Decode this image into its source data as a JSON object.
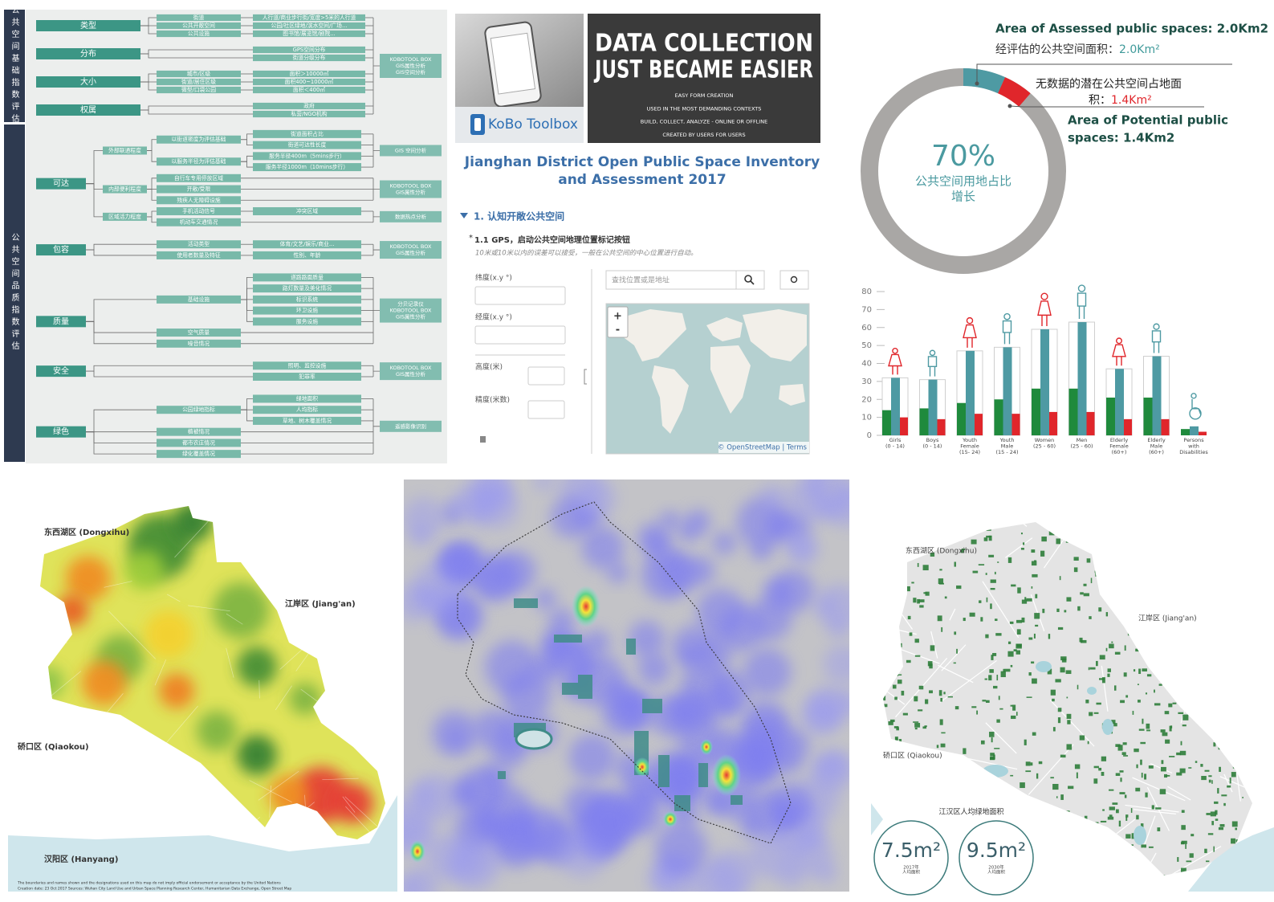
{
  "framework": {
    "sections": [
      {
        "title": "公共空间基础指数评估",
        "categories": [
          {
            "label": "类型",
            "children": [
              {
                "label": "街道",
                "children": [
                  {
                    "label": "人行道/商业步行街/宽度>5米的人行道"
                  }
                ]
              },
              {
                "label": "公共开敞空间",
                "children": [
                  {
                    "label": "公园/社区绿地/滨水空间/广场..."
                  }
                ]
              },
              {
                "label": "公共设施",
                "children": [
                  {
                    "label": "图书馆/展览馆/剧院..."
                  }
                ]
              }
            ]
          },
          {
            "label": "分布",
            "children": [
              {
                "label": "GPS空间分布"
              },
              {
                "label": "街道分级分布"
              }
            ]
          },
          {
            "label": "大小",
            "children": [
              {
                "label": "城市/区级",
                "children": [
                  {
                    "label": "面积＞10000㎡"
                  }
                ]
              },
              {
                "label": "街道/居住区级",
                "children": [
                  {
                    "label": "面积400~10000㎡"
                  }
                ]
              },
              {
                "label": "微型/口袋公园",
                "children": [
                  {
                    "label": "面积＜400㎡"
                  }
                ]
              }
            ]
          },
          {
            "label": "权属",
            "children": [
              {
                "label": "政府"
              },
              {
                "label": "私营/NGO机构"
              }
            ]
          }
        ],
        "outputs": [
          "KOBOTOOL BOX",
          "GIS属性分析",
          "GIS空间分析"
        ]
      },
      {
        "title": "公共空间品质指数评估",
        "categories": [
          {
            "label": "可达",
            "children": [
              {
                "label": "外部联通程度",
                "outputs": [
                  "GIS 空间分析"
                ],
                "children": [
                  {
                    "label": "以街道密度为评估基础",
                    "children": [
                      {
                        "label": "街道面积占比"
                      },
                      {
                        "label": "街道可达性长度"
                      }
                    ]
                  },
                  {
                    "label": "以服务半径为评估基础",
                    "children": [
                      {
                        "label": "服务半径400m（5mins步行）"
                      },
                      {
                        "label": "服务半径1000m（10mins步行）"
                      }
                    ]
                  }
                ]
              },
              {
                "label": "内部便利程度",
                "outputs": [
                  "KOBOTOOL BOX",
                  "GIS属性分析"
                ],
                "children": [
                  {
                    "label": "自行车专用停放区域"
                  },
                  {
                    "label": "开敞/受限"
                  },
                  {
                    "label": "残疾人无障碍设施"
                  }
                ]
              },
              {
                "label": "区域活力程度",
                "outputs": [
                  "数据热点分析"
                ],
                "children": [
                  {
                    "label": "手机活动信号",
                    "children": [
                      {
                        "label": "冲突区域"
                      }
                    ]
                  },
                  {
                    "label": "机动车交通情况"
                  }
                ]
              }
            ]
          },
          {
            "label": "包容",
            "outputs": [
              "KOBOTOOL BOX",
              "GIS属性分析"
            ],
            "children": [
              {
                "label": "活动类型",
                "children": [
                  {
                    "label": "体育/文艺/娱乐/商业..."
                  }
                ]
              },
              {
                "label": "使用者数量及特征",
                "children": [
                  {
                    "label": "性别、年龄"
                  }
                ]
              }
            ]
          },
          {
            "label": "质量",
            "outputs": [
              "分贝记录仪",
              "KOBOTOOL BOX",
              "GIS属性分析"
            ],
            "children": [
              {
                "label": "基础设施",
                "children": [
                  {
                    "label": "道路路面质量"
                  },
                  {
                    "label": "路灯数量及美化情况"
                  },
                  {
                    "label": "标识系统"
                  },
                  {
                    "label": "环卫设施"
                  },
                  {
                    "label": "服务设施"
                  }
                ]
              },
              {
                "label": "空气质量"
              },
              {
                "label": "噪音情况"
              }
            ]
          },
          {
            "label": "安全",
            "outputs": [
              "KOBOTOOL BOX",
              "GIS属性分析"
            ],
            "children": [
              {
                "label": "照明、监控设施"
              },
              {
                "label": "犯罪率"
              }
            ]
          },
          {
            "label": "绿色",
            "outputs": [
              "遥感影像识别"
            ],
            "children": [
              {
                "label": "公园绿地指标",
                "children": [
                  {
                    "label": "绿地面积"
                  },
                  {
                    "label": "人均指标"
                  },
                  {
                    "label": "草地、树木覆盖情况"
                  }
                ]
              },
              {
                "label": "植被情况"
              },
              {
                "label": "都市农庄情况"
              },
              {
                "label": "绿化覆盖情况"
              }
            ]
          }
        ]
      }
    ]
  },
  "kobo": {
    "brand": "KoBo Toolbox",
    "headline": [
      "DATA COLLECTION",
      "JUST BECAME EASIER"
    ],
    "taglines": [
      "EASY FORM CREATION",
      "USED IN THE MOST DEMANDING CONTEXTS",
      "BUILD, COLLECT, ANALYZE - ONLINE OR OFFLINE",
      "CREATED BY USERS FOR USERS"
    ],
    "form_title": [
      "Jianghan District Open Public Space Inventory",
      "and Assessment 2017"
    ],
    "group": "1. 认知开敞公共空间",
    "required_mark": "*",
    "question": "1.1 GPS，启动公共空间地理位置标记按钮",
    "hint": "10米或10米以内的误差可以接受，一般在公共空间的中心位置进行自动。",
    "fields": [
      "纬度(x.y °)",
      "经度(x.y °)",
      "高度(米)",
      "精度(米数)"
    ],
    "search_placeholder": "查找位置或是地址",
    "zoom": [
      "+",
      "-"
    ],
    "attribution": "© OpenStreetMap | Terms"
  },
  "space_summary": {
    "assessed_label": "Area of Assessed public spaces: 2.0Km2",
    "assessed_label_cn": "经评估的公共空间面积：",
    "assessed_value_cn": "2.0Km²",
    "potential_label_cn": [
      "无数据的潜在公共空间占地面",
      "积："
    ],
    "potential_value_cn": "1.4Km²",
    "potential_label": [
      "Area of Potential public",
      "spaces: 1.4Km2"
    ],
    "percent": "70%",
    "percent_caption": [
      "公共空间用地占比",
      "增长"
    ],
    "assessed_area": 2.0,
    "potential_area": 1.4
  },
  "chart_data": {
    "type": "bar",
    "categories": [
      [
        "Girls",
        "(0 - 14)"
      ],
      [
        "Boys",
        "(0 - 14)"
      ],
      [
        "Youth",
        "Female",
        "(15- 24)"
      ],
      [
        "Youth",
        "Male",
        "(15 - 24)"
      ],
      [
        "Women",
        "(25 - 60)"
      ],
      [
        "Men",
        "(25 - 60)"
      ],
      [
        "Elderly",
        "Female",
        "(60+)"
      ],
      [
        "Elderly",
        "Male",
        "(60+)"
      ],
      [
        "Persons",
        "with",
        "Disabilities"
      ]
    ],
    "series": [
      {
        "color": "#4e9aa3",
        "values": [
          32,
          31,
          47,
          49,
          59,
          63,
          37,
          44,
          5
        ]
      },
      {
        "color": "#1f8a3c",
        "values": [
          14,
          15,
          18,
          20,
          26,
          26,
          21,
          21,
          3.5
        ]
      },
      {
        "color": "#e0262b",
        "values": [
          10,
          9,
          12,
          12,
          13,
          13,
          9,
          9,
          2
        ]
      }
    ],
    "ylim": [
      0,
      80
    ],
    "yticks": [
      0,
      10,
      20,
      30,
      40,
      50,
      60,
      70,
      80
    ]
  },
  "maps": {
    "heat": {
      "labels": [
        "东西湖区 (Dongxihu)",
        "江岸区 (Jiang'an)",
        "硚口区 (Qiaokou)",
        "汉阳区 (Hanyang)"
      ],
      "notes": [
        "The boundaries and names shown and the designations used on this map do not imply official endorsement or acceptance by the United Nations",
        "Creation date: 23 Oct 2017     Sources: Wuhan City Land Use and Urban Space Planning Research Center, Humanitarian Data Exchange, Open Street Map"
      ]
    },
    "green": {
      "labels": [
        "东西湖区 (Dongxihu)",
        "江岸区 (Jiang'an)",
        "硚口区 (Qiaokou)"
      ],
      "caption": "江汉区人均绿地面积",
      "badges": [
        {
          "value": "7.5m²",
          "year": "2017年",
          "caption": "人均面积"
        },
        {
          "value": "9.5m²",
          "year": "2030年",
          "caption": "人均面积"
        }
      ]
    }
  }
}
